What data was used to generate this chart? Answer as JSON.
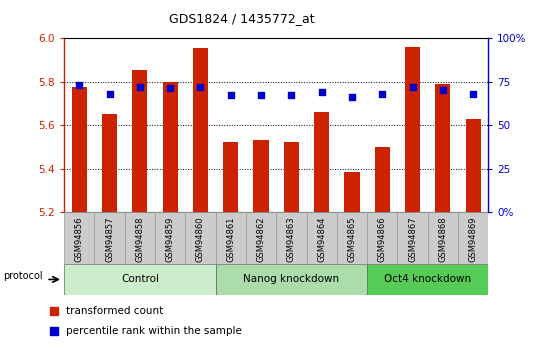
{
  "title": "GDS1824 / 1435772_at",
  "samples": [
    "GSM94856",
    "GSM94857",
    "GSM94858",
    "GSM94859",
    "GSM94860",
    "GSM94861",
    "GSM94862",
    "GSM94863",
    "GSM94864",
    "GSM94865",
    "GSM94866",
    "GSM94867",
    "GSM94868",
    "GSM94869"
  ],
  "bar_values": [
    5.775,
    5.65,
    5.855,
    5.8,
    5.955,
    5.52,
    5.53,
    5.52,
    5.66,
    5.385,
    5.5,
    5.96,
    5.79,
    5.63
  ],
  "percentile_values": [
    73,
    68,
    72,
    71,
    72,
    67,
    67,
    67,
    69,
    66,
    68,
    72,
    70,
    68
  ],
  "ymin": 5.2,
  "ymax": 6.0,
  "yticks_left": [
    5.2,
    5.4,
    5.6,
    5.8,
    6.0
  ],
  "yticks_right": [
    0,
    25,
    50,
    75,
    100
  ],
  "bar_color": "#cc2200",
  "dot_color": "#0000cc",
  "bar_width": 0.5,
  "groups": [
    {
      "label": "Control",
      "start": 0,
      "end": 4,
      "color": "#cceecc"
    },
    {
      "label": "Nanog knockdown",
      "start": 5,
      "end": 9,
      "color": "#aaddaa"
    },
    {
      "label": "Oct4 knockdown",
      "start": 10,
      "end": 13,
      "color": "#55cc55"
    }
  ],
  "legend_bar_label": "transformed count",
  "legend_dot_label": "percentile rank within the sample",
  "left_axis_color": "#cc2200",
  "right_axis_color": "#0000cc",
  "sample_bg_color": "#cccccc",
  "sample_border_color": "#999999",
  "group_border_color": "#666666"
}
